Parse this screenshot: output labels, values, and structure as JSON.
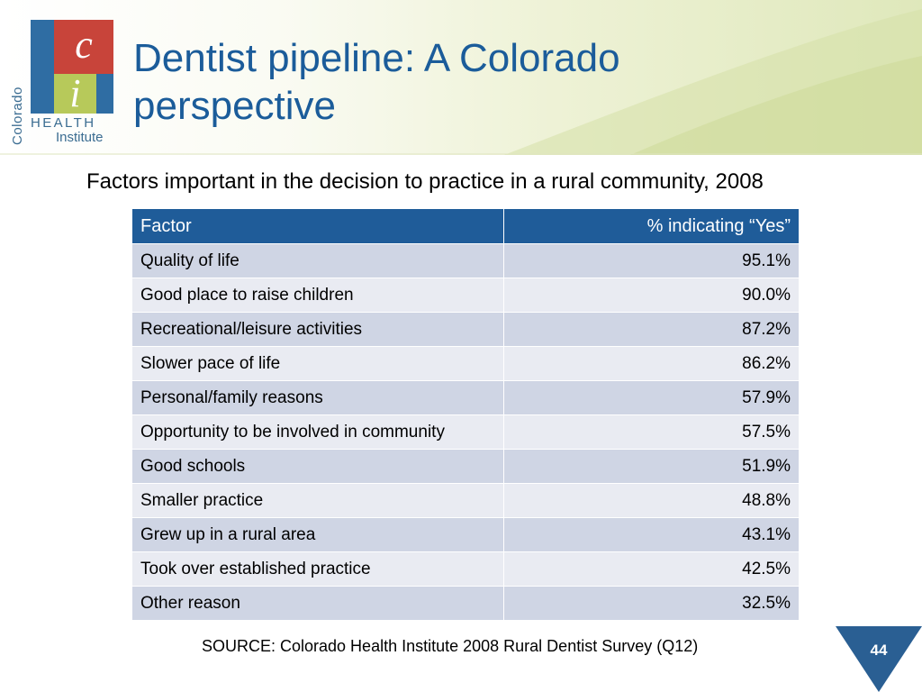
{
  "logo": {
    "colorado": "Colorado",
    "letter_c": "c",
    "letter_i": "i",
    "health": "HEALTH",
    "institute": "Institute"
  },
  "slide": {
    "title": "Dentist pipeline: A Colorado perspective",
    "subtitle": "Factors important in the decision to practice in a rural community, 2008"
  },
  "table": {
    "headers": [
      "Factor",
      "% indicating “Yes”"
    ],
    "rows": [
      {
        "factor": "Quality of life",
        "value": "95.1%"
      },
      {
        "factor": "Good place to raise children",
        "value": "90.0%"
      },
      {
        "factor": "Recreational/leisure activities",
        "value": "87.2%"
      },
      {
        "factor": "Slower pace of life",
        "value": "86.2%"
      },
      {
        "factor": "Personal/family reasons",
        "value": "57.9%"
      },
      {
        "factor": "Opportunity to be involved in community",
        "value": "57.5%"
      },
      {
        "factor": "Good schools",
        "value": "51.9%"
      },
      {
        "factor": "Smaller practice",
        "value": "48.8%"
      },
      {
        "factor": "Grew up in a rural area",
        "value": "43.1%"
      },
      {
        "factor": "Took over established practice",
        "value": "42.5%"
      },
      {
        "factor": "Other reason",
        "value": "32.5%"
      }
    ]
  },
  "source": "SOURCE:  Colorado Health Institute 2008 Rural Dentist Survey (Q12)",
  "page_number": "44",
  "colors": {
    "title_blue": "#1b5c9a",
    "header_fill": "#1f5c99",
    "row_dark": "#cfd5e4",
    "row_light": "#e9ebf2",
    "logo_red": "#c8443a",
    "logo_green": "#b7c95a",
    "logo_blue": "#2f6da3"
  }
}
